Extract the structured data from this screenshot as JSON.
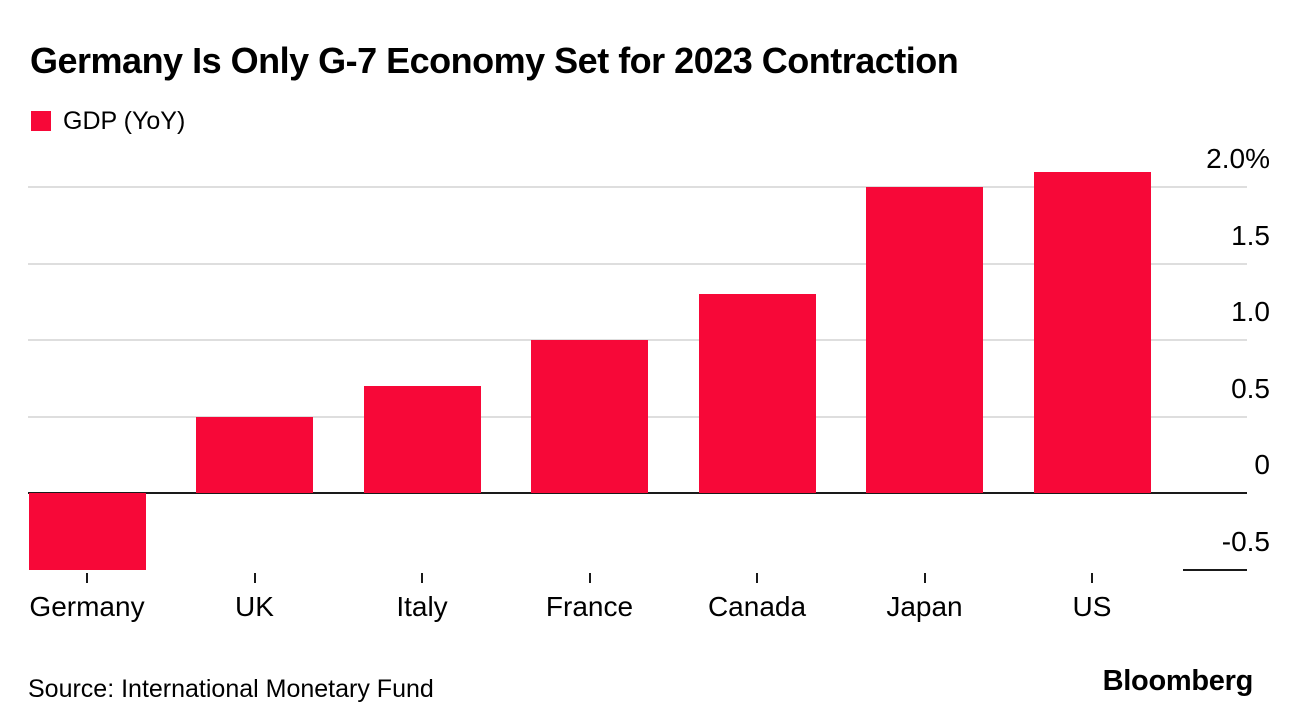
{
  "chart_data": {
    "type": "bar",
    "title": "Germany Is Only G-7 Economy Set for 2023 Contraction",
    "categories": [
      "Germany",
      "UK",
      "Italy",
      "France",
      "Canada",
      "Japan",
      "US"
    ],
    "series": [
      {
        "name": "GDP (YoY)",
        "values": [
          -0.5,
          0.5,
          0.7,
          1.0,
          1.3,
          2.0,
          2.1
        ]
      }
    ],
    "unit": "%",
    "ylim": [
      -0.75,
      2.25
    ],
    "yticks": [
      {
        "value": 2.0,
        "label": "2.0%"
      },
      {
        "value": 1.5,
        "label": "1.5"
      },
      {
        "value": 1.0,
        "label": "1.0"
      },
      {
        "value": 0.5,
        "label": "0.5"
      },
      {
        "value": 0,
        "label": "0"
      },
      {
        "value": -0.5,
        "label": "-0.5"
      }
    ],
    "grid": "horizontal light gridlines, dark zero baseline, y-axis labels on right above lines",
    "legend_position": "top-left",
    "bar_color": "#f70838",
    "gridline_color": "#dedede",
    "axis_color": "#1a1a1a",
    "text_color": "#000000"
  },
  "legend": {
    "label": "GDP (YoY)"
  },
  "footer": {
    "source": "Source: International Monetary Fund",
    "brand": "Bloomberg"
  }
}
